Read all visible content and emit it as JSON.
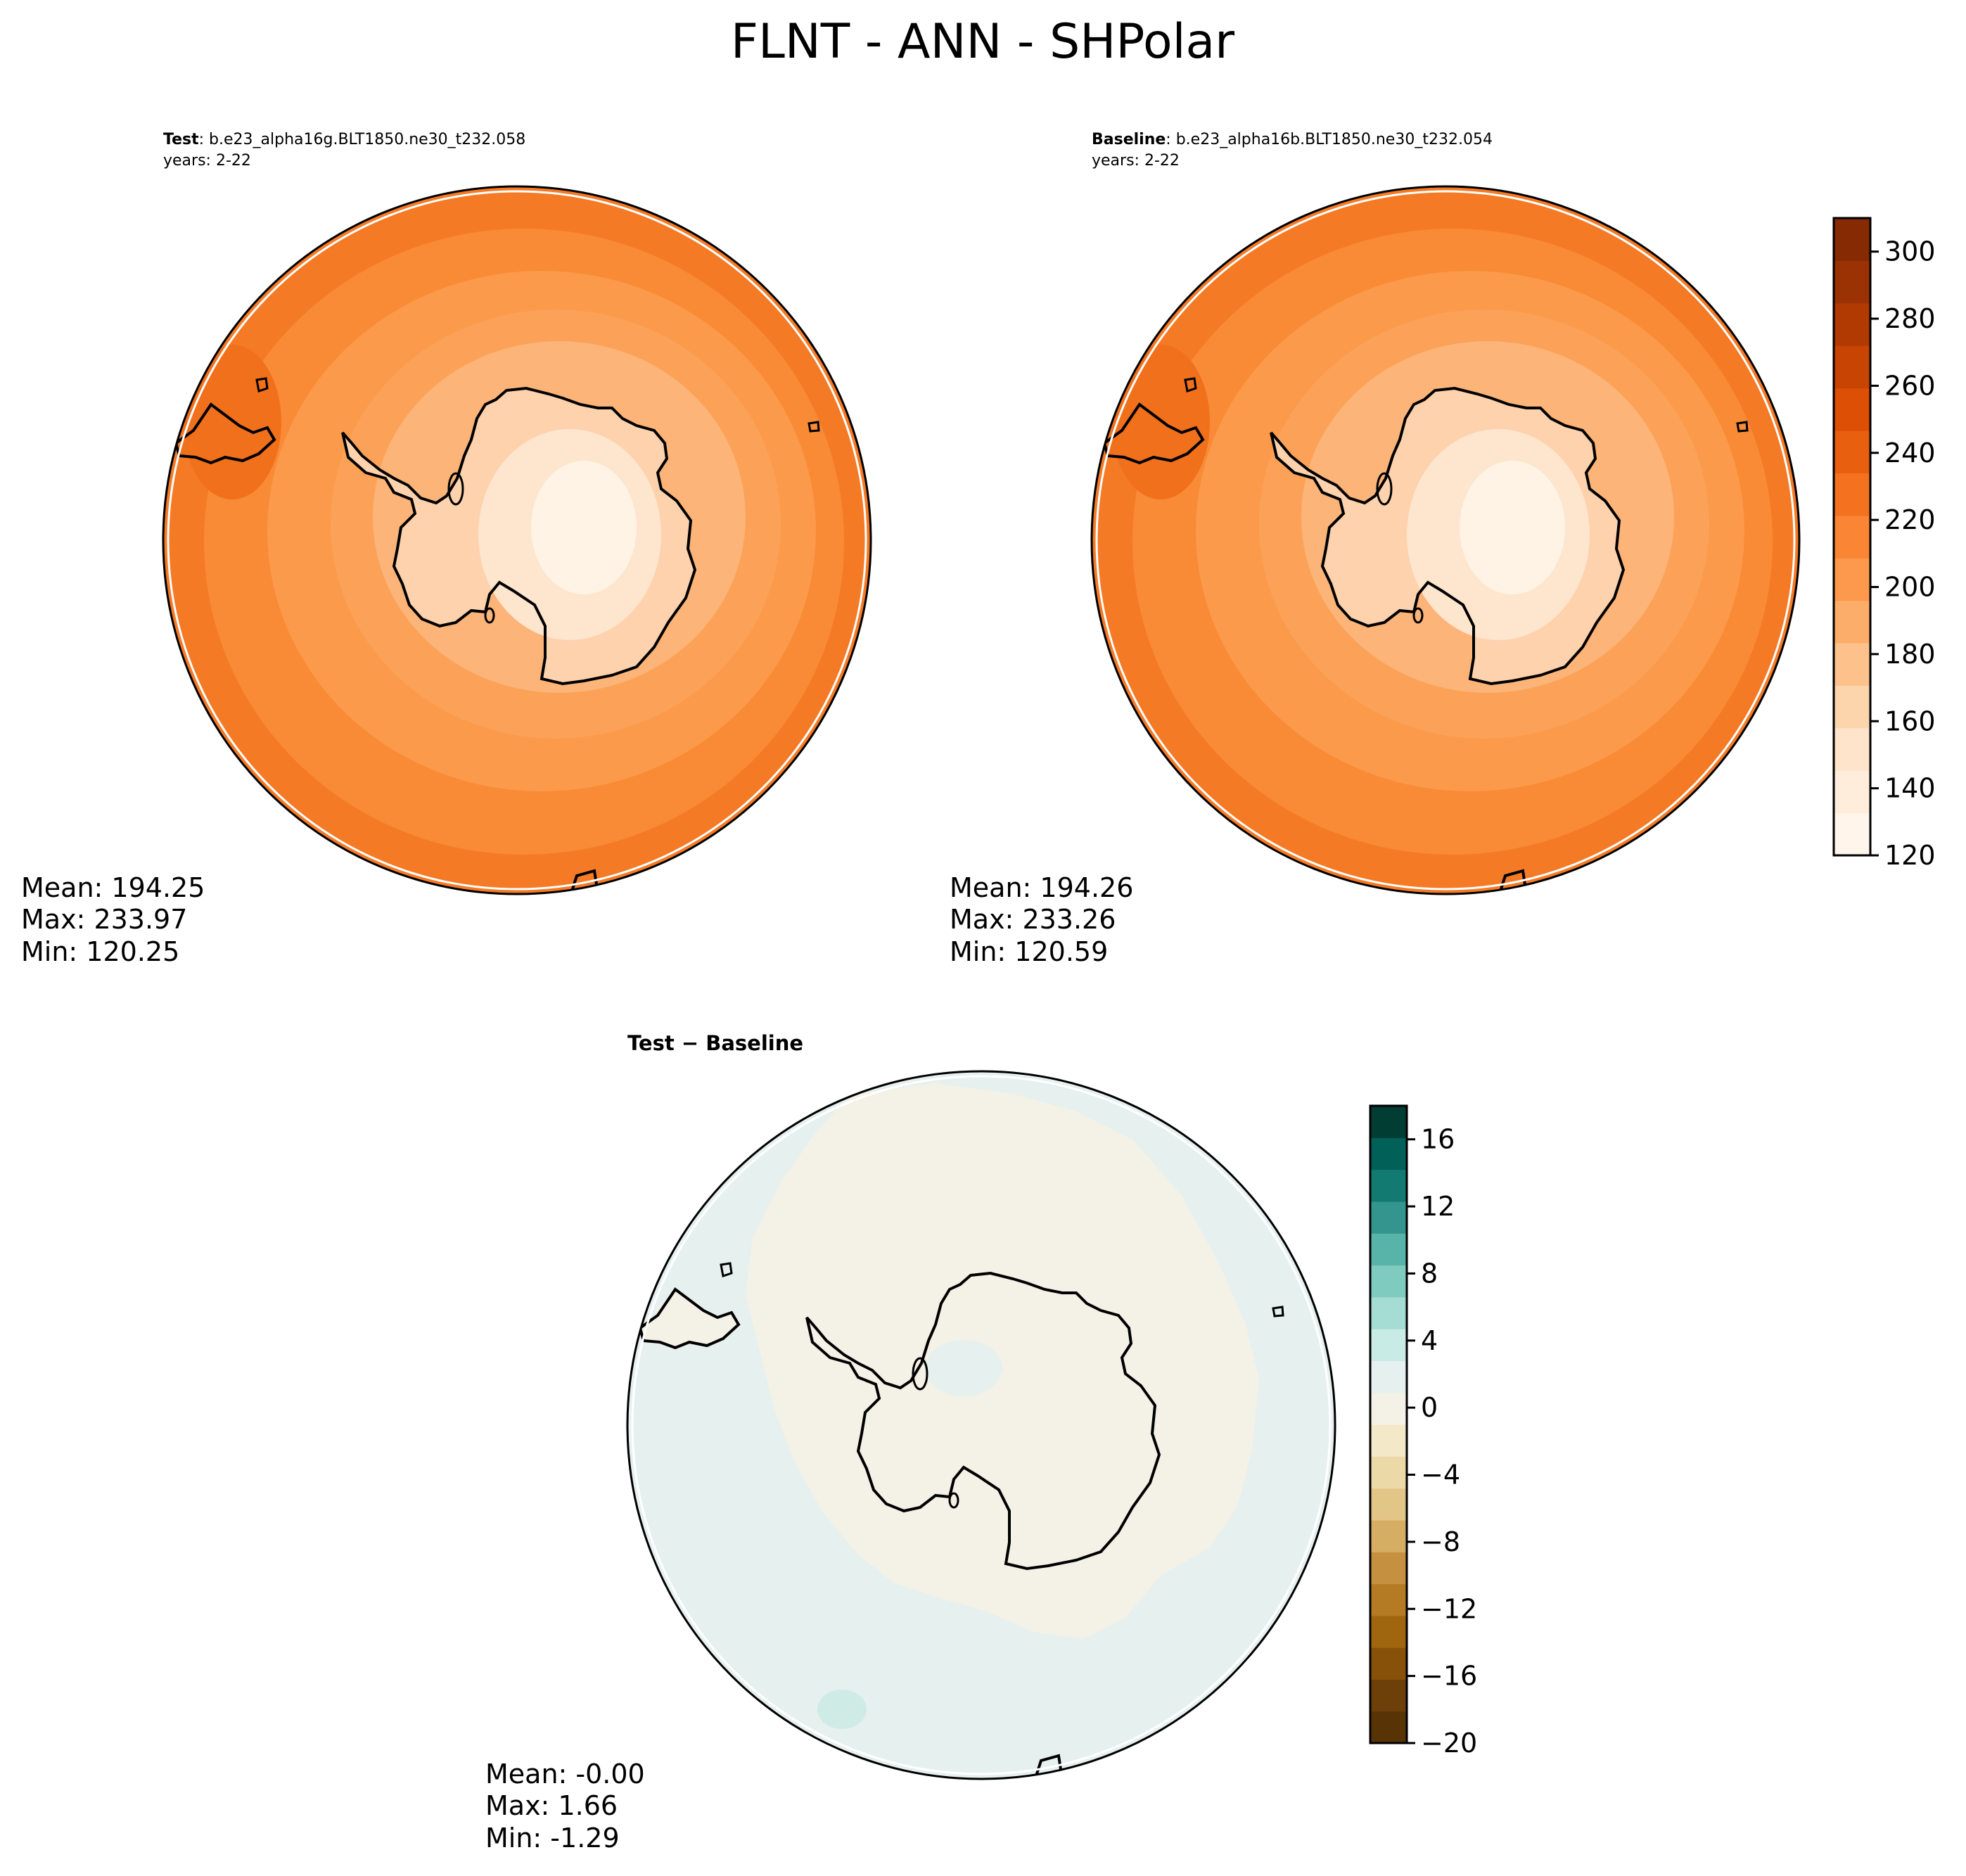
{
  "figure": {
    "title": "FLNT - ANN - SHPolar"
  },
  "test_panel": {
    "label_bold": "Test",
    "label_rest": ": b.e23_alpha16g.BLT1850.ne30_t232.058",
    "years": "years: 2-22",
    "stats": {
      "mean": "Mean: 194.25",
      "max": "Max: 233.97",
      "min": "Min: 120.25"
    }
  },
  "baseline_panel": {
    "label_bold": "Baseline",
    "label_rest": ": b.e23_alpha16b.BLT1850.ne30_t232.054",
    "years": "years: 2-22",
    "stats": {
      "mean": "Mean: 194.26",
      "max": "Max: 233.26",
      "min": "Min: 120.59"
    }
  },
  "diff_panel": {
    "label": "Test − Baseline",
    "stats": {
      "mean": "Mean: -0.00",
      "max": "Max:  1.66",
      "min": "Min: -1.29"
    }
  },
  "colorbar_main": {
    "ticks": [
      "120",
      "140",
      "160",
      "180",
      "200",
      "220",
      "240",
      "260",
      "280",
      "300"
    ],
    "range": [
      120,
      310
    ],
    "colors": [
      "#fff5eb",
      "#feeddb",
      "#fee4ca",
      "#fdd5ad",
      "#fdc28c",
      "#fdad6a",
      "#fd994d",
      "#f98535",
      "#f3711f",
      "#e85f10",
      "#dc4f04",
      "#c74402",
      "#b13a02",
      "#9a3203",
      "#862a04"
    ]
  },
  "colorbar_diff": {
    "ticks": [
      "−20",
      "−16",
      "−12",
      "−8",
      "−4",
      "0",
      "4",
      "8",
      "12",
      "16"
    ],
    "range": [
      -20,
      18
    ],
    "colors": [
      "#573305",
      "#6e4009",
      "#875109",
      "#a0660f",
      "#b47b24",
      "#c5903f",
      "#d5ad63",
      "#e2c688",
      "#ecd9a8",
      "#f3e8c8",
      "#f4f1e6",
      "#e6f1ef",
      "#c9ebe5",
      "#a5dcd3",
      "#80cbbf",
      "#58b3a8",
      "#33958d",
      "#137a72",
      "#016159",
      "#013d33"
    ]
  },
  "map_colors": {
    "ocean_outer": "#f47a26",
    "ocean_mid": "#f98a36",
    "ocean_inner": "#fba258",
    "shelf": "#fcb478",
    "land_edge": "#fdd2ad",
    "land_mid": "#fee5cd",
    "land_core": "#fff3e6",
    "diff_neutral_plus": "#e6f1ef",
    "diff_neutral_minus": "#f4f1e6",
    "diff_positive": "#cfebe5"
  }
}
